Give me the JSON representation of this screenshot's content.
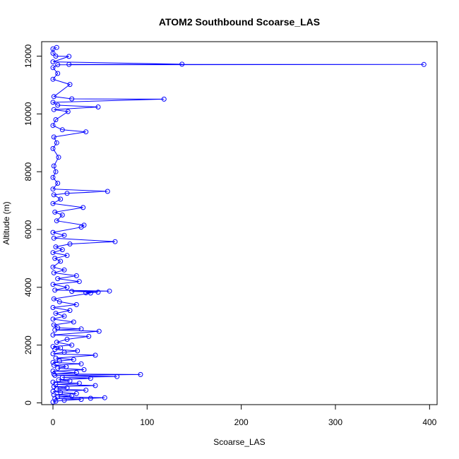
{
  "chart_data": {
    "type": "scatter",
    "title": "ATOM2 Southbound Scoarse_LAS",
    "xlabel": "Scoarse_LAS",
    "ylabel": "Altitude (m)",
    "xlim": [
      -12,
      408
    ],
    "ylim": [
      -60,
      12500
    ],
    "x_ticks": [
      0,
      100,
      200,
      300,
      400
    ],
    "y_ticks": [
      0,
      2000,
      4000,
      6000,
      8000,
      10000,
      12000
    ],
    "grid": false,
    "series_color": "#0000ff",
    "marker": "open-circle",
    "connected": true,
    "points": [
      [
        0,
        30
      ],
      [
        3,
        60
      ],
      [
        12,
        90
      ],
      [
        30,
        120
      ],
      [
        2,
        150
      ],
      [
        55,
        180
      ],
      [
        5,
        210
      ],
      [
        20,
        240
      ],
      [
        40,
        160
      ],
      [
        1,
        280
      ],
      [
        25,
        320
      ],
      [
        8,
        360
      ],
      [
        0,
        400
      ],
      [
        35,
        440
      ],
      [
        4,
        480
      ],
      [
        15,
        520
      ],
      [
        1,
        560
      ],
      [
        45,
        600
      ],
      [
        3,
        640
      ],
      [
        28,
        680
      ],
      [
        0,
        720
      ],
      [
        18,
        760
      ],
      [
        6,
        800
      ],
      [
        40,
        850
      ],
      [
        93,
        980
      ],
      [
        2,
        950
      ],
      [
        68,
        910
      ],
      [
        10,
        880
      ],
      [
        1,
        1000
      ],
      [
        25,
        1050
      ],
      [
        0,
        1100
      ],
      [
        33,
        1150
      ],
      [
        5,
        1200
      ],
      [
        14,
        1250
      ],
      [
        1,
        1300
      ],
      [
        30,
        1350
      ],
      [
        0,
        1400
      ],
      [
        7,
        1450
      ],
      [
        22,
        1500
      ],
      [
        3,
        1550
      ],
      [
        45,
        1650
      ],
      [
        0,
        1700
      ],
      [
        12,
        1750
      ],
      [
        26,
        1800
      ],
      [
        2,
        1850
      ],
      [
        8,
        1900
      ],
      [
        0,
        1950
      ],
      [
        20,
        2000
      ],
      [
        4,
        2100
      ],
      [
        15,
        2200
      ],
      [
        38,
        2300
      ],
      [
        0,
        2350
      ],
      [
        49,
        2480
      ],
      [
        2,
        2520
      ],
      [
        30,
        2560
      ],
      [
        5,
        2600
      ],
      [
        1,
        2700
      ],
      [
        22,
        2800
      ],
      [
        0,
        2900
      ],
      [
        12,
        3000
      ],
      [
        3,
        3100
      ],
      [
        18,
        3200
      ],
      [
        0,
        3300
      ],
      [
        25,
        3400
      ],
      [
        7,
        3500
      ],
      [
        1,
        3600
      ],
      [
        40,
        3800
      ],
      [
        60,
        3870
      ],
      [
        35,
        3810
      ],
      [
        48,
        3830
      ],
      [
        20,
        3860
      ],
      [
        2,
        3900
      ],
      [
        15,
        4000
      ],
      [
        0,
        4100
      ],
      [
        28,
        4200
      ],
      [
        5,
        4300
      ],
      [
        25,
        4400
      ],
      [
        1,
        4500
      ],
      [
        12,
        4600
      ],
      [
        0,
        4700
      ],
      [
        8,
        4900
      ],
      [
        2,
        5000
      ],
      [
        15,
        5100
      ],
      [
        0,
        5200
      ],
      [
        10,
        5300
      ],
      [
        3,
        5400
      ],
      [
        18,
        5500
      ],
      [
        66,
        5580
      ],
      [
        1,
        5700
      ],
      [
        12,
        5800
      ],
      [
        0,
        5900
      ],
      [
        33,
        6150
      ],
      [
        30,
        6080
      ],
      [
        4,
        6300
      ],
      [
        10,
        6500
      ],
      [
        2,
        6600
      ],
      [
        32,
        6760
      ],
      [
        0,
        6900
      ],
      [
        8,
        7050
      ],
      [
        1,
        7200
      ],
      [
        58,
        7320
      ],
      [
        15,
        7250
      ],
      [
        0,
        7400
      ],
      [
        5,
        7600
      ],
      [
        0,
        7800
      ],
      [
        3,
        8000
      ],
      [
        1,
        8200
      ],
      [
        6,
        8500
      ],
      [
        0,
        8800
      ],
      [
        4,
        9000
      ],
      [
        1,
        9200
      ],
      [
        35,
        9380
      ],
      [
        10,
        9450
      ],
      [
        0,
        9600
      ],
      [
        3,
        9800
      ],
      [
        16,
        10080
      ],
      [
        1,
        10150
      ],
      [
        48,
        10240
      ],
      [
        5,
        10300
      ],
      [
        0,
        10400
      ],
      [
        118,
        10510
      ],
      [
        20,
        10520
      ],
      [
        1,
        10600
      ],
      [
        18,
        11020
      ],
      [
        0,
        11200
      ],
      [
        5,
        11400
      ],
      [
        0,
        11600
      ],
      [
        394,
        11710
      ],
      [
        137,
        11720
      ],
      [
        17,
        11710
      ],
      [
        5,
        11700
      ],
      [
        0,
        11800
      ],
      [
        17,
        11990
      ],
      [
        3,
        12000
      ],
      [
        0,
        12100
      ],
      [
        4,
        12300
      ],
      [
        0,
        12250
      ]
    ]
  }
}
